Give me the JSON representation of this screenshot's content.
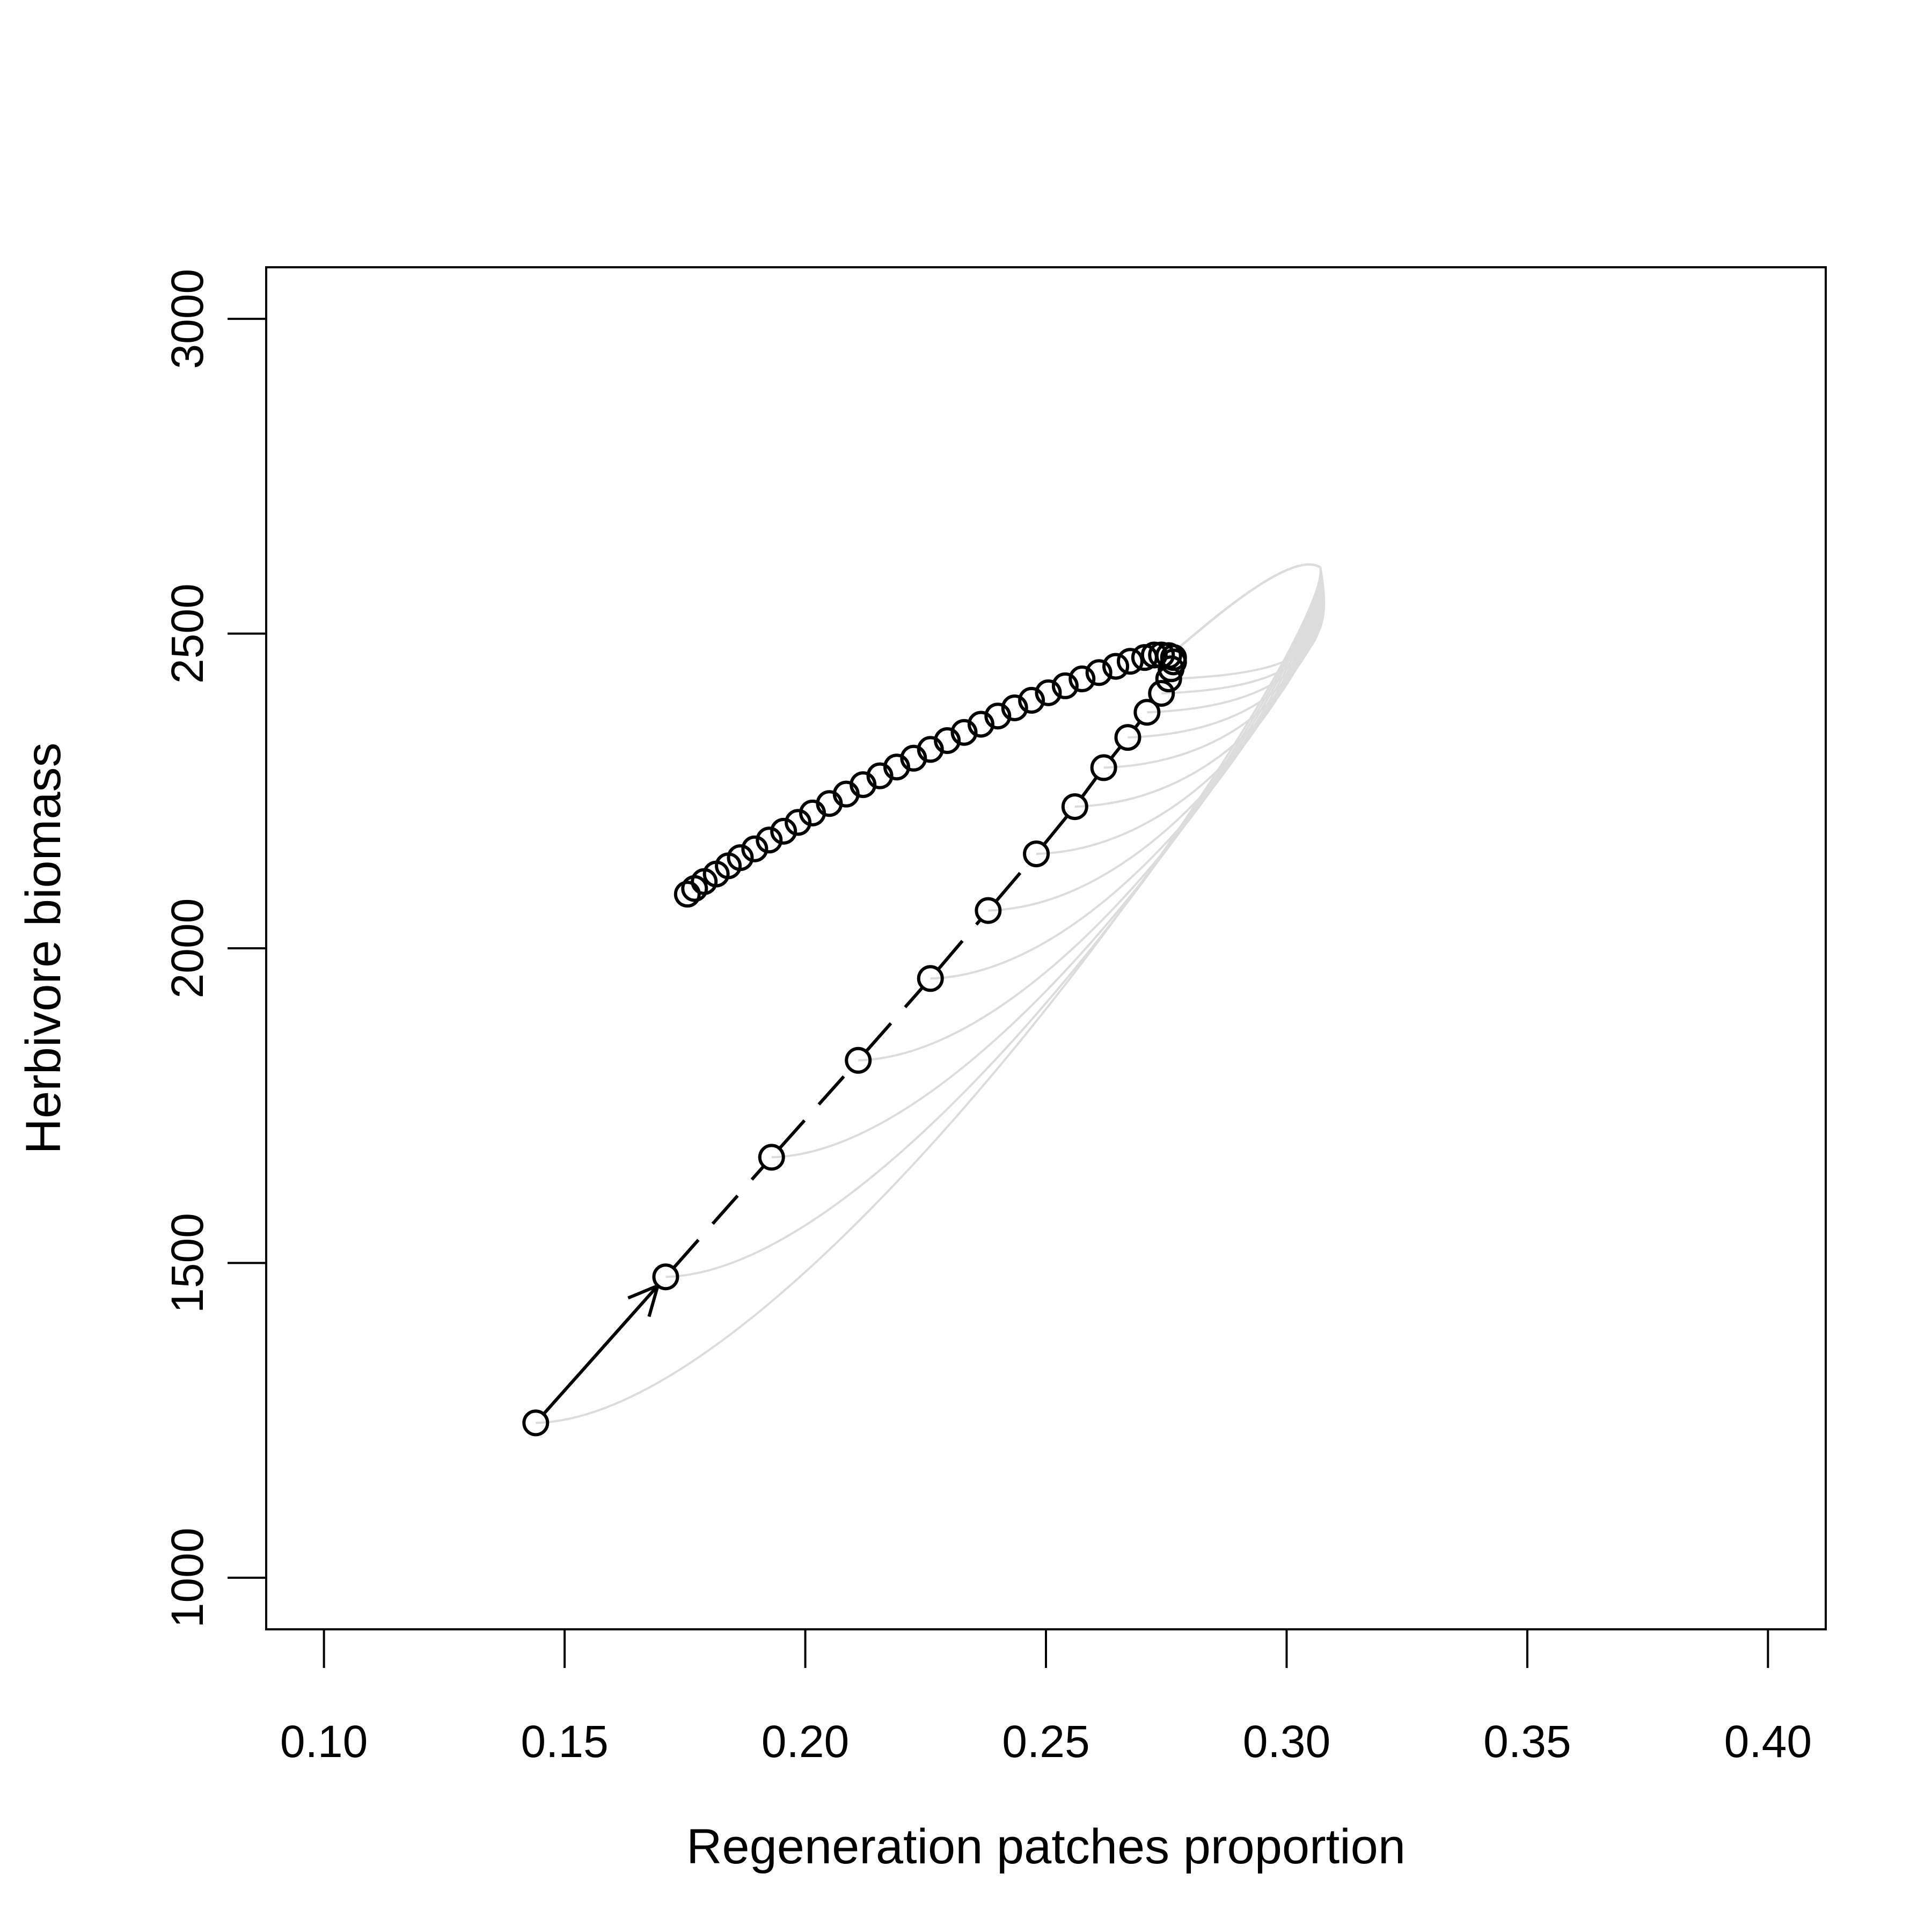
{
  "chart_data": {
    "type": "scatter",
    "title": "",
    "xlabel": "Regeneration patches proportion",
    "ylabel": "Herbivore biomass",
    "xlim": [
      0.088,
      0.412
    ],
    "ylim": [
      918,
      3082
    ],
    "xticks": [
      {
        "value": 0.1,
        "label": "0.10"
      },
      {
        "value": 0.15,
        "label": "0.15"
      },
      {
        "value": 0.2,
        "label": "0.20"
      },
      {
        "value": 0.25,
        "label": "0.25"
      },
      {
        "value": 0.3,
        "label": "0.30"
      },
      {
        "value": 0.35,
        "label": "0.35"
      },
      {
        "value": 0.4,
        "label": "0.40"
      }
    ],
    "yticks": [
      {
        "value": 1000,
        "label": "1000"
      },
      {
        "value": 1500,
        "label": "1500"
      },
      {
        "value": 2000,
        "label": "2000"
      },
      {
        "value": 2500,
        "label": "2500"
      },
      {
        "value": 3000,
        "label": "3000"
      }
    ],
    "grid": false,
    "series": [
      {
        "points": [
          [
            0.144,
            1246
          ],
          [
            0.171,
            1478
          ],
          [
            0.193,
            1668
          ],
          [
            0.211,
            1822
          ],
          [
            0.226,
            1952
          ],
          [
            0.238,
            2060
          ],
          [
            0.248,
            2150
          ],
          [
            0.256,
            2225
          ],
          [
            0.262,
            2287
          ],
          [
            0.267,
            2335
          ],
          [
            0.271,
            2375
          ],
          [
            0.274,
            2405
          ],
          [
            0.2755,
            2428
          ],
          [
            0.276,
            2444
          ],
          [
            0.2765,
            2455
          ],
          [
            0.2765,
            2462
          ],
          [
            0.2755,
            2465
          ],
          [
            0.274,
            2466
          ],
          [
            0.2725,
            2466
          ],
          [
            0.2705,
            2462
          ],
          [
            0.2675,
            2456
          ],
          [
            0.2645,
            2448
          ],
          [
            0.261,
            2438
          ],
          [
            0.2575,
            2428
          ],
          [
            0.254,
            2417
          ],
          [
            0.2505,
            2406
          ],
          [
            0.247,
            2394
          ],
          [
            0.2435,
            2382
          ],
          [
            0.24,
            2369
          ],
          [
            0.2365,
            2356
          ],
          [
            0.233,
            2343
          ],
          [
            0.2295,
            2330
          ],
          [
            0.226,
            2316
          ],
          [
            0.2225,
            2302
          ],
          [
            0.219,
            2288
          ],
          [
            0.2155,
            2274
          ],
          [
            0.212,
            2260
          ],
          [
            0.2085,
            2245
          ],
          [
            0.205,
            2230
          ],
          [
            0.2015,
            2215
          ],
          [
            0.1985,
            2200
          ],
          [
            0.1955,
            2186
          ],
          [
            0.1925,
            2172
          ],
          [
            0.1895,
            2158
          ],
          [
            0.1865,
            2144
          ],
          [
            0.184,
            2131
          ],
          [
            0.1815,
            2118
          ],
          [
            0.179,
            2106
          ],
          [
            0.177,
            2095
          ],
          [
            0.1755,
            2086
          ]
        ]
      }
    ]
  }
}
